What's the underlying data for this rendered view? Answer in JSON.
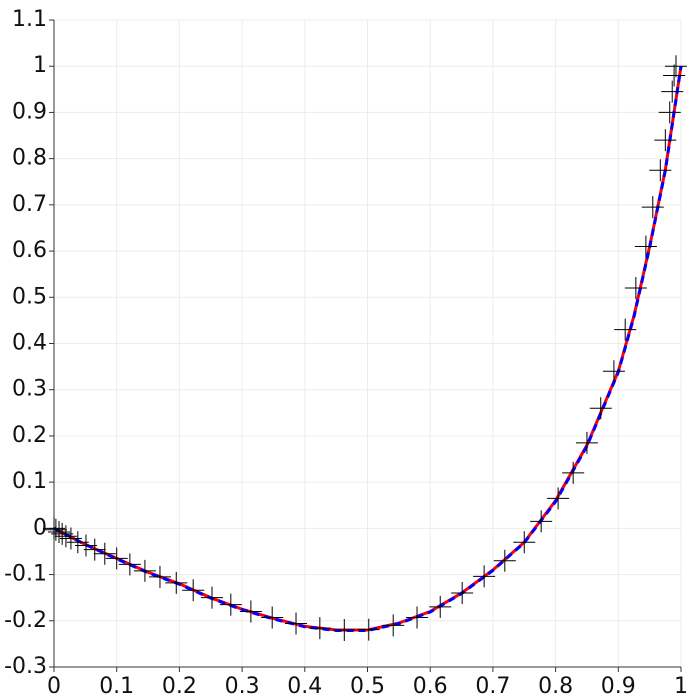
{
  "chart_data": {
    "type": "line",
    "xlim": [
      0,
      1
    ],
    "xticks": [
      0,
      0.1,
      0.2,
      0.3,
      0.4,
      0.5,
      0.6,
      0.7,
      0.8,
      0.9,
      1
    ],
    "ylim": [
      -0.3,
      1.1
    ],
    "yticks": [
      -0.3,
      -0.2,
      -0.1,
      0,
      0.1,
      0.2,
      0.3,
      0.4,
      0.5,
      0.6,
      0.7,
      0.8,
      0.9,
      1,
      1.1
    ],
    "grid": true,
    "series": [
      {
        "color": "#ff0000",
        "linestyle": "solid",
        "x": [
          0,
          0.05,
          0.1,
          0.15,
          0.2,
          0.25,
          0.3,
          0.35,
          0.4,
          0.45,
          0.5,
          0.55,
          0.6,
          0.65,
          0.7,
          0.75,
          0.8,
          0.85,
          0.9,
          0.925,
          0.95,
          0.975,
          1
        ],
        "values": [
          0,
          -0.035,
          -0.065,
          -0.095,
          -0.12,
          -0.15,
          -0.175,
          -0.195,
          -0.212,
          -0.22,
          -0.22,
          -0.205,
          -0.18,
          -0.14,
          -0.09,
          -0.03,
          0.06,
          0.18,
          0.34,
          0.46,
          0.61,
          0.776,
          1.0
        ]
      },
      {
        "color": "#0000ff",
        "linestyle": "dashed",
        "x": [
          0,
          0.05,
          0.1,
          0.15,
          0.2,
          0.25,
          0.3,
          0.35,
          0.4,
          0.45,
          0.5,
          0.55,
          0.6,
          0.65,
          0.7,
          0.75,
          0.8,
          0.85,
          0.9,
          0.925,
          0.95,
          0.975,
          1
        ],
        "values": [
          0,
          -0.035,
          -0.066,
          -0.096,
          -0.121,
          -0.151,
          -0.176,
          -0.196,
          -0.213,
          -0.221,
          -0.221,
          -0.206,
          -0.181,
          -0.141,
          -0.091,
          -0.031,
          0.058,
          0.178,
          0.338,
          0.458,
          0.608,
          0.774,
          1.0
        ]
      },
      {
        "color": "#000000",
        "linestyle": "none",
        "marker": "plus",
        "x": [
          0,
          0.003,
          0.008,
          0.013,
          0.019,
          0.027,
          0.038,
          0.051,
          0.065,
          0.081,
          0.1,
          0.121,
          0.145,
          0.169,
          0.195,
          0.222,
          0.252,
          0.282,
          0.314,
          0.348,
          0.386,
          0.424,
          0.463,
          0.502,
          0.541,
          0.579,
          0.616,
          0.651,
          0.686,
          0.719,
          0.75,
          0.777,
          0.804,
          0.828,
          0.85,
          0.872,
          0.893,
          0.911,
          0.928,
          0.944,
          0.955,
          0.967,
          0.975,
          0.982,
          0.986,
          0.989,
          0.992
        ],
        "values": [
          0,
          -0.003,
          -0.008,
          -0.012,
          -0.017,
          -0.022,
          -0.03,
          -0.037,
          -0.046,
          -0.055,
          -0.065,
          -0.078,
          -0.092,
          -0.105,
          -0.118,
          -0.134,
          -0.15,
          -0.165,
          -0.18,
          -0.193,
          -0.206,
          -0.216,
          -0.22,
          -0.219,
          -0.21,
          -0.193,
          -0.17,
          -0.14,
          -0.104,
          -0.07,
          -0.03,
          0.015,
          0.065,
          0.12,
          0.185,
          0.26,
          0.34,
          0.43,
          0.52,
          0.61,
          0.695,
          0.775,
          0.84,
          0.9,
          0.945,
          0.98,
          1.0
        ]
      }
    ]
  }
}
